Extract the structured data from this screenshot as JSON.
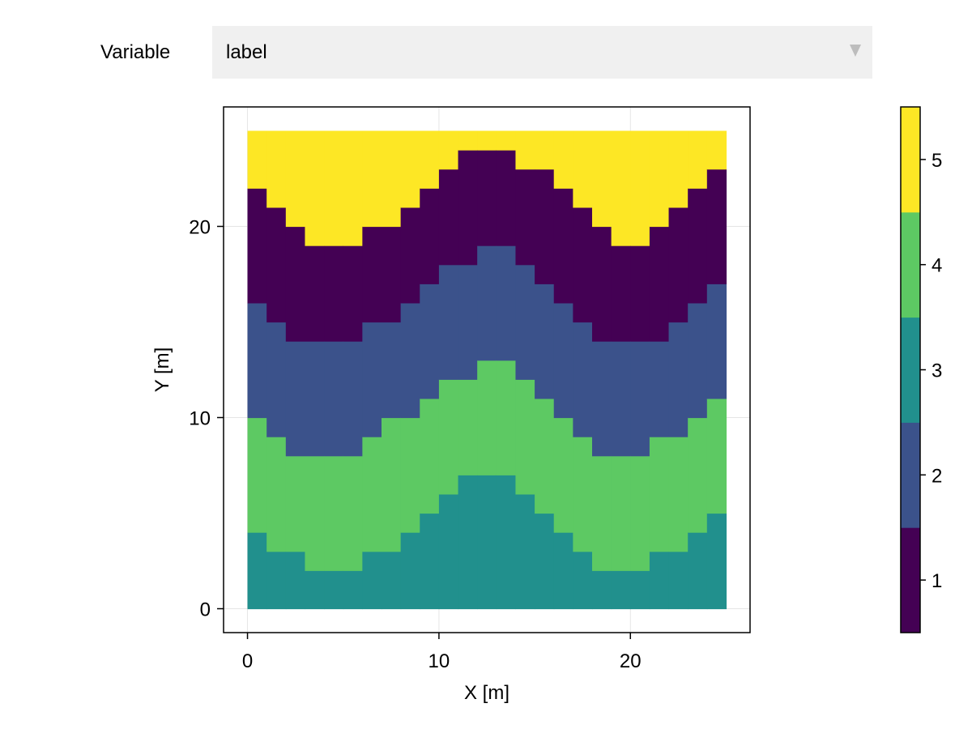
{
  "controls": {
    "variable_label": "Variable",
    "variable_value": "label",
    "dropdown_icon": "triangle-down-icon"
  },
  "chart_data": {
    "type": "heatmap",
    "title": "",
    "xlabel": "X [m]",
    "ylabel": "Y [m]",
    "xlim": [
      -1.25,
      26.25
    ],
    "ylim": [
      -1.25,
      26.25
    ],
    "xticks": [
      0,
      10,
      20
    ],
    "yticks": [
      0,
      10,
      20
    ],
    "grid": true,
    "grid_spacing": 1,
    "columns_x_start": 0,
    "columns_x_end": 25,
    "column_boundaries": [
      [
        4,
        10,
        16,
        22
      ],
      [
        3,
        9,
        15,
        21
      ],
      [
        3,
        8,
        14,
        20
      ],
      [
        2,
        8,
        14,
        19
      ],
      [
        2,
        8,
        14,
        19
      ],
      [
        2,
        8,
        14,
        19
      ],
      [
        3,
        9,
        15,
        20
      ],
      [
        3,
        10,
        15,
        20
      ],
      [
        4,
        10,
        16,
        21
      ],
      [
        5,
        11,
        17,
        22
      ],
      [
        6,
        12,
        18,
        23
      ],
      [
        7,
        12,
        18,
        24
      ],
      [
        7,
        13,
        19,
        24
      ],
      [
        7,
        13,
        19,
        24
      ],
      [
        6,
        12,
        18,
        23
      ],
      [
        5,
        11,
        17,
        23
      ],
      [
        4,
        10,
        16,
        22
      ],
      [
        3,
        9,
        15,
        21
      ],
      [
        2,
        8,
        14,
        20
      ],
      [
        2,
        8,
        14,
        19
      ],
      [
        2,
        8,
        14,
        19
      ],
      [
        3,
        9,
        14,
        20
      ],
      [
        3,
        9,
        15,
        21
      ],
      [
        4,
        10,
        16,
        22
      ],
      [
        5,
        11,
        17,
        23
      ]
    ],
    "layer_order_bottom_to_top": [
      3,
      4,
      2,
      1,
      5
    ],
    "y_top": 25,
    "colorbar": {
      "values": [
        1,
        2,
        3,
        4,
        5
      ],
      "ticks": [
        "1",
        "2",
        "3",
        "4",
        "5"
      ],
      "colors": [
        "#440154",
        "#3b528b",
        "#21908d",
        "#5dc963",
        "#fde725"
      ],
      "range": [
        0.5,
        5.5
      ]
    }
  }
}
